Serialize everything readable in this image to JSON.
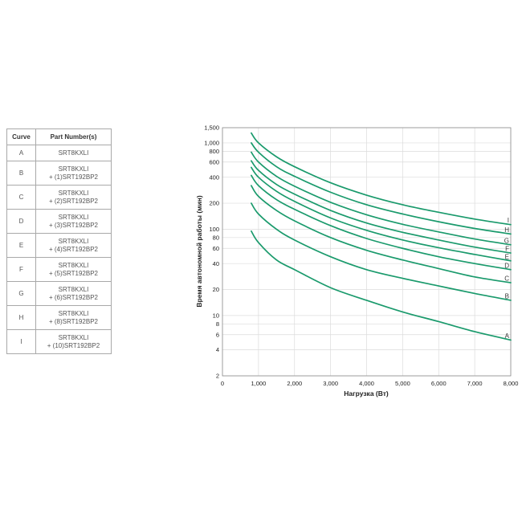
{
  "table": {
    "headers": [
      "Curve",
      "Part Number(s)"
    ],
    "rows": [
      {
        "curve": "A",
        "line1": "SRT8KXLI",
        "line2": ""
      },
      {
        "curve": "B",
        "line1": "SRT8KXLI",
        "line2": "+ (1)SRT192BP2"
      },
      {
        "curve": "C",
        "line1": "SRT8KXLI",
        "line2": "+ (2)SRT192BP2"
      },
      {
        "curve": "D",
        "line1": "SRT8KXLI",
        "line2": "+ (3)SRT192BP2"
      },
      {
        "curve": "E",
        "line1": "SRT8KXLI",
        "line2": "+ (4)SRT192BP2"
      },
      {
        "curve": "F",
        "line1": "SRT8KXLI",
        "line2": "+ (5)SRT192BP2"
      },
      {
        "curve": "G",
        "line1": "SRT8KXLI",
        "line2": "+ (6)SRT192BP2"
      },
      {
        "curve": "H",
        "line1": "SRT8KXLI",
        "line2": "+ (8)SRT192BP2"
      },
      {
        "curve": "I",
        "line1": "SRT8KXLI",
        "line2": "+ (10)SRT192BP2"
      }
    ]
  },
  "chart_data": {
    "type": "line",
    "title": "",
    "xlabel": "Нагрузка (Вт)",
    "ylabel": "Время автономной работы (мин)",
    "xlim": [
      0,
      8000
    ],
    "ylim": [
      2,
      1500
    ],
    "yscale": "log",
    "grid": true,
    "x_ticks": [
      0,
      1000,
      2000,
      3000,
      4000,
      5000,
      6000,
      7000,
      8000
    ],
    "x_tick_labels": [
      "0",
      "1,000",
      "2,000",
      "3,000",
      "4,000",
      "5,000",
      "6,000",
      "7,000",
      "8,000"
    ],
    "y_ticks": [
      2,
      4,
      6,
      8,
      10,
      20,
      40,
      60,
      80,
      100,
      200,
      400,
      600,
      800,
      1000,
      1500
    ],
    "y_tick_labels": [
      "2",
      "4",
      "6",
      "8",
      "10",
      "20",
      "40",
      "60",
      "80",
      "100",
      "200",
      "400",
      "600",
      "800",
      "1,000",
      "1,500"
    ],
    "line_color": "#1a9a6c",
    "x": [
      800,
      1000,
      1500,
      2000,
      3000,
      4000,
      5000,
      6000,
      7000,
      8000
    ],
    "series": [
      {
        "name": "A",
        "values": [
          95,
          70,
          44,
          34,
          21,
          15,
          11,
          8.5,
          6.5,
          5.2
        ]
      },
      {
        "name": "B",
        "values": [
          200,
          150,
          100,
          75,
          48,
          34,
          27,
          22,
          18,
          15
        ]
      },
      {
        "name": "C",
        "values": [
          320,
          240,
          165,
          125,
          80,
          57,
          44,
          35,
          28,
          24
        ]
      },
      {
        "name": "D",
        "values": [
          420,
          320,
          220,
          170,
          110,
          78,
          60,
          48,
          40,
          34
        ]
      },
      {
        "name": "E",
        "values": [
          520,
          400,
          275,
          210,
          135,
          97,
          75,
          61,
          51,
          43
        ]
      },
      {
        "name": "F",
        "values": [
          620,
          480,
          330,
          255,
          165,
          118,
          92,
          75,
          62,
          53
        ]
      },
      {
        "name": "G",
        "values": [
          780,
          600,
          410,
          315,
          205,
          147,
          114,
          93,
          77,
          66
        ]
      },
      {
        "name": "H",
        "values": [
          1000,
          780,
          530,
          410,
          268,
          192,
          150,
          122,
          102,
          88
        ]
      },
      {
        "name": "I",
        "values": [
          1300,
          1000,
          690,
          530,
          345,
          248,
          192,
          157,
          131,
          113
        ]
      }
    ]
  }
}
